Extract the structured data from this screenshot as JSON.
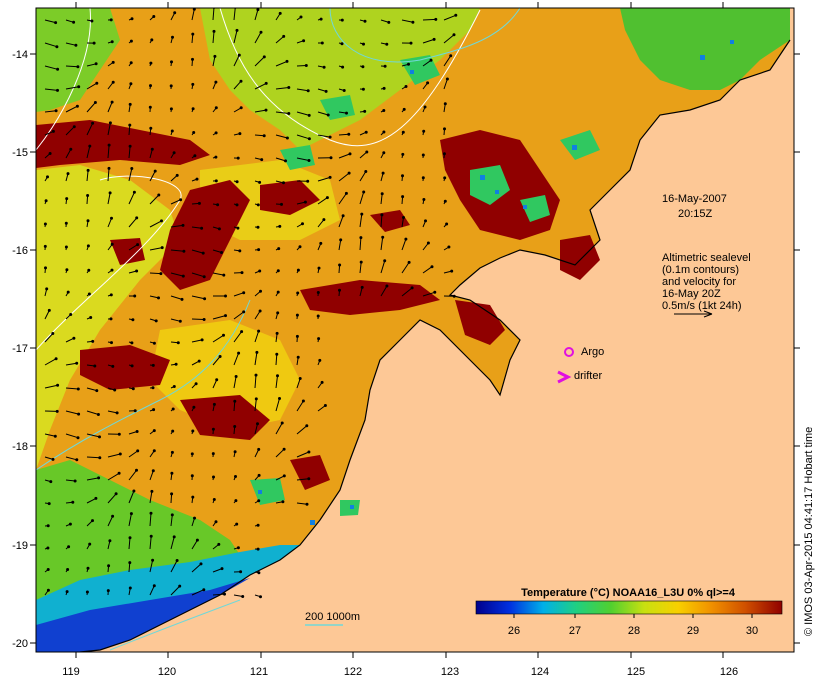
{
  "map": {
    "date_label": "16-May-2007",
    "time_label": "20:15Z",
    "altimetry_note": [
      "Altimetric sealevel",
      "(0.1m contours)",
      "and velocity for",
      "16-May 20Z",
      "0.5m/s (1kt 24h)"
    ],
    "argo_label": "Argo",
    "drifter_label": "drifter",
    "depth_contour_label": "200  1000m",
    "credit": "© IMOS 03-Apr-2015 04:41:17 Hobart time",
    "lon_ticks": [
      "119",
      "120",
      "121",
      "122",
      "123",
      "124",
      "125",
      "126"
    ],
    "lat_ticks": [
      "-14",
      "-15",
      "-16",
      "-17",
      "-18",
      "-19",
      "-20"
    ],
    "colorbar": {
      "title": "Temperature (°C) NOAA16_L3U 0% ql>=4",
      "ticks": [
        "26",
        "27",
        "28",
        "29",
        "30"
      ],
      "range": [
        25.4,
        30.4
      ]
    },
    "colors": {
      "land": "#fdc896",
      "argo": "#e010e0",
      "drifter": "#e010e0",
      "contour": "#70d8d8",
      "ramp": [
        "#00008c",
        "#0030e0",
        "#00b0e8",
        "#20d080",
        "#50d030",
        "#c8e010",
        "#f8d000",
        "#f09000",
        "#d05000",
        "#900000"
      ]
    }
  }
}
